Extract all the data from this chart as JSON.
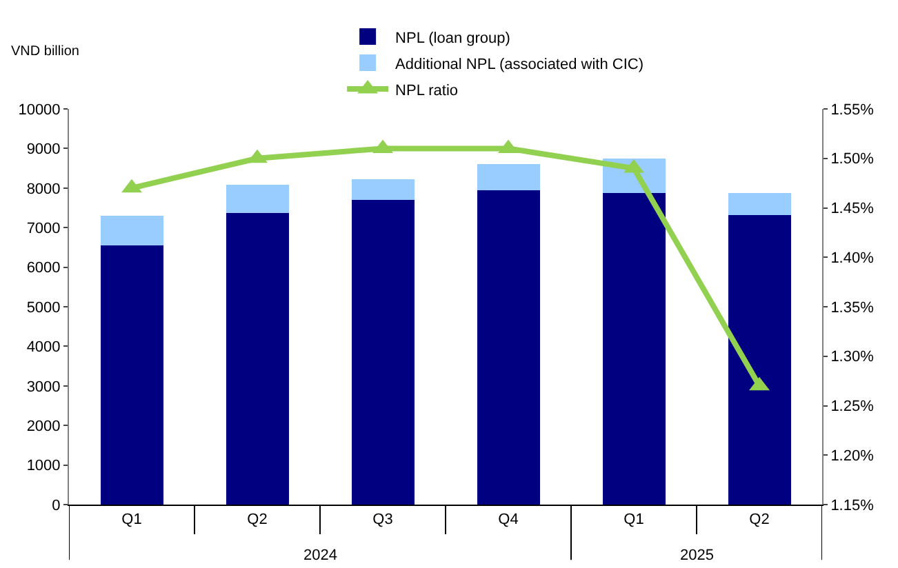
{
  "chart_data": {
    "type": "bar",
    "stacked": true,
    "ylabel": "VND billion",
    "categories": [
      "Q1",
      "Q2",
      "Q3",
      "Q4",
      "Q1",
      "Q2"
    ],
    "series": [
      {
        "name": "NPL (loan group)",
        "color": "#000080",
        "values": [
          6550,
          7370,
          7700,
          7950,
          7880,
          7320
        ]
      },
      {
        "name": "Additional NPL (associated with CIC)",
        "color": "#99ccff",
        "values": [
          750,
          710,
          530,
          650,
          870,
          560
        ]
      },
      {
        "name": "NPL ratio",
        "type": "line",
        "axis": "y2",
        "color": "#92d050",
        "values": [
          1.47,
          1.5,
          1.51,
          1.51,
          1.49,
          1.27
        ]
      }
    ],
    "ylim": [
      0,
      10000
    ],
    "yticks": [
      0,
      1000,
      2000,
      3000,
      4000,
      5000,
      6000,
      7000,
      8000,
      9000,
      10000
    ],
    "y2lim": [
      1.15,
      1.55
    ],
    "y2ticks": [
      {
        "value": 1.15,
        "label": "1.15%"
      },
      {
        "value": 1.2,
        "label": "1.20%"
      },
      {
        "value": 1.25,
        "label": "1.25%"
      },
      {
        "value": 1.3,
        "label": "1.30%"
      },
      {
        "value": 1.35,
        "label": "1.35%"
      },
      {
        "value": 1.4,
        "label": "1.40%"
      },
      {
        "value": 1.45,
        "label": "1.45%"
      },
      {
        "value": 1.5,
        "label": "1.50%"
      },
      {
        "value": 1.55,
        "label": "1.55%"
      }
    ],
    "annotations": [
      "2024",
      "2025"
    ],
    "marker": "triangle",
    "line_style": "solid",
    "legend": "top"
  }
}
